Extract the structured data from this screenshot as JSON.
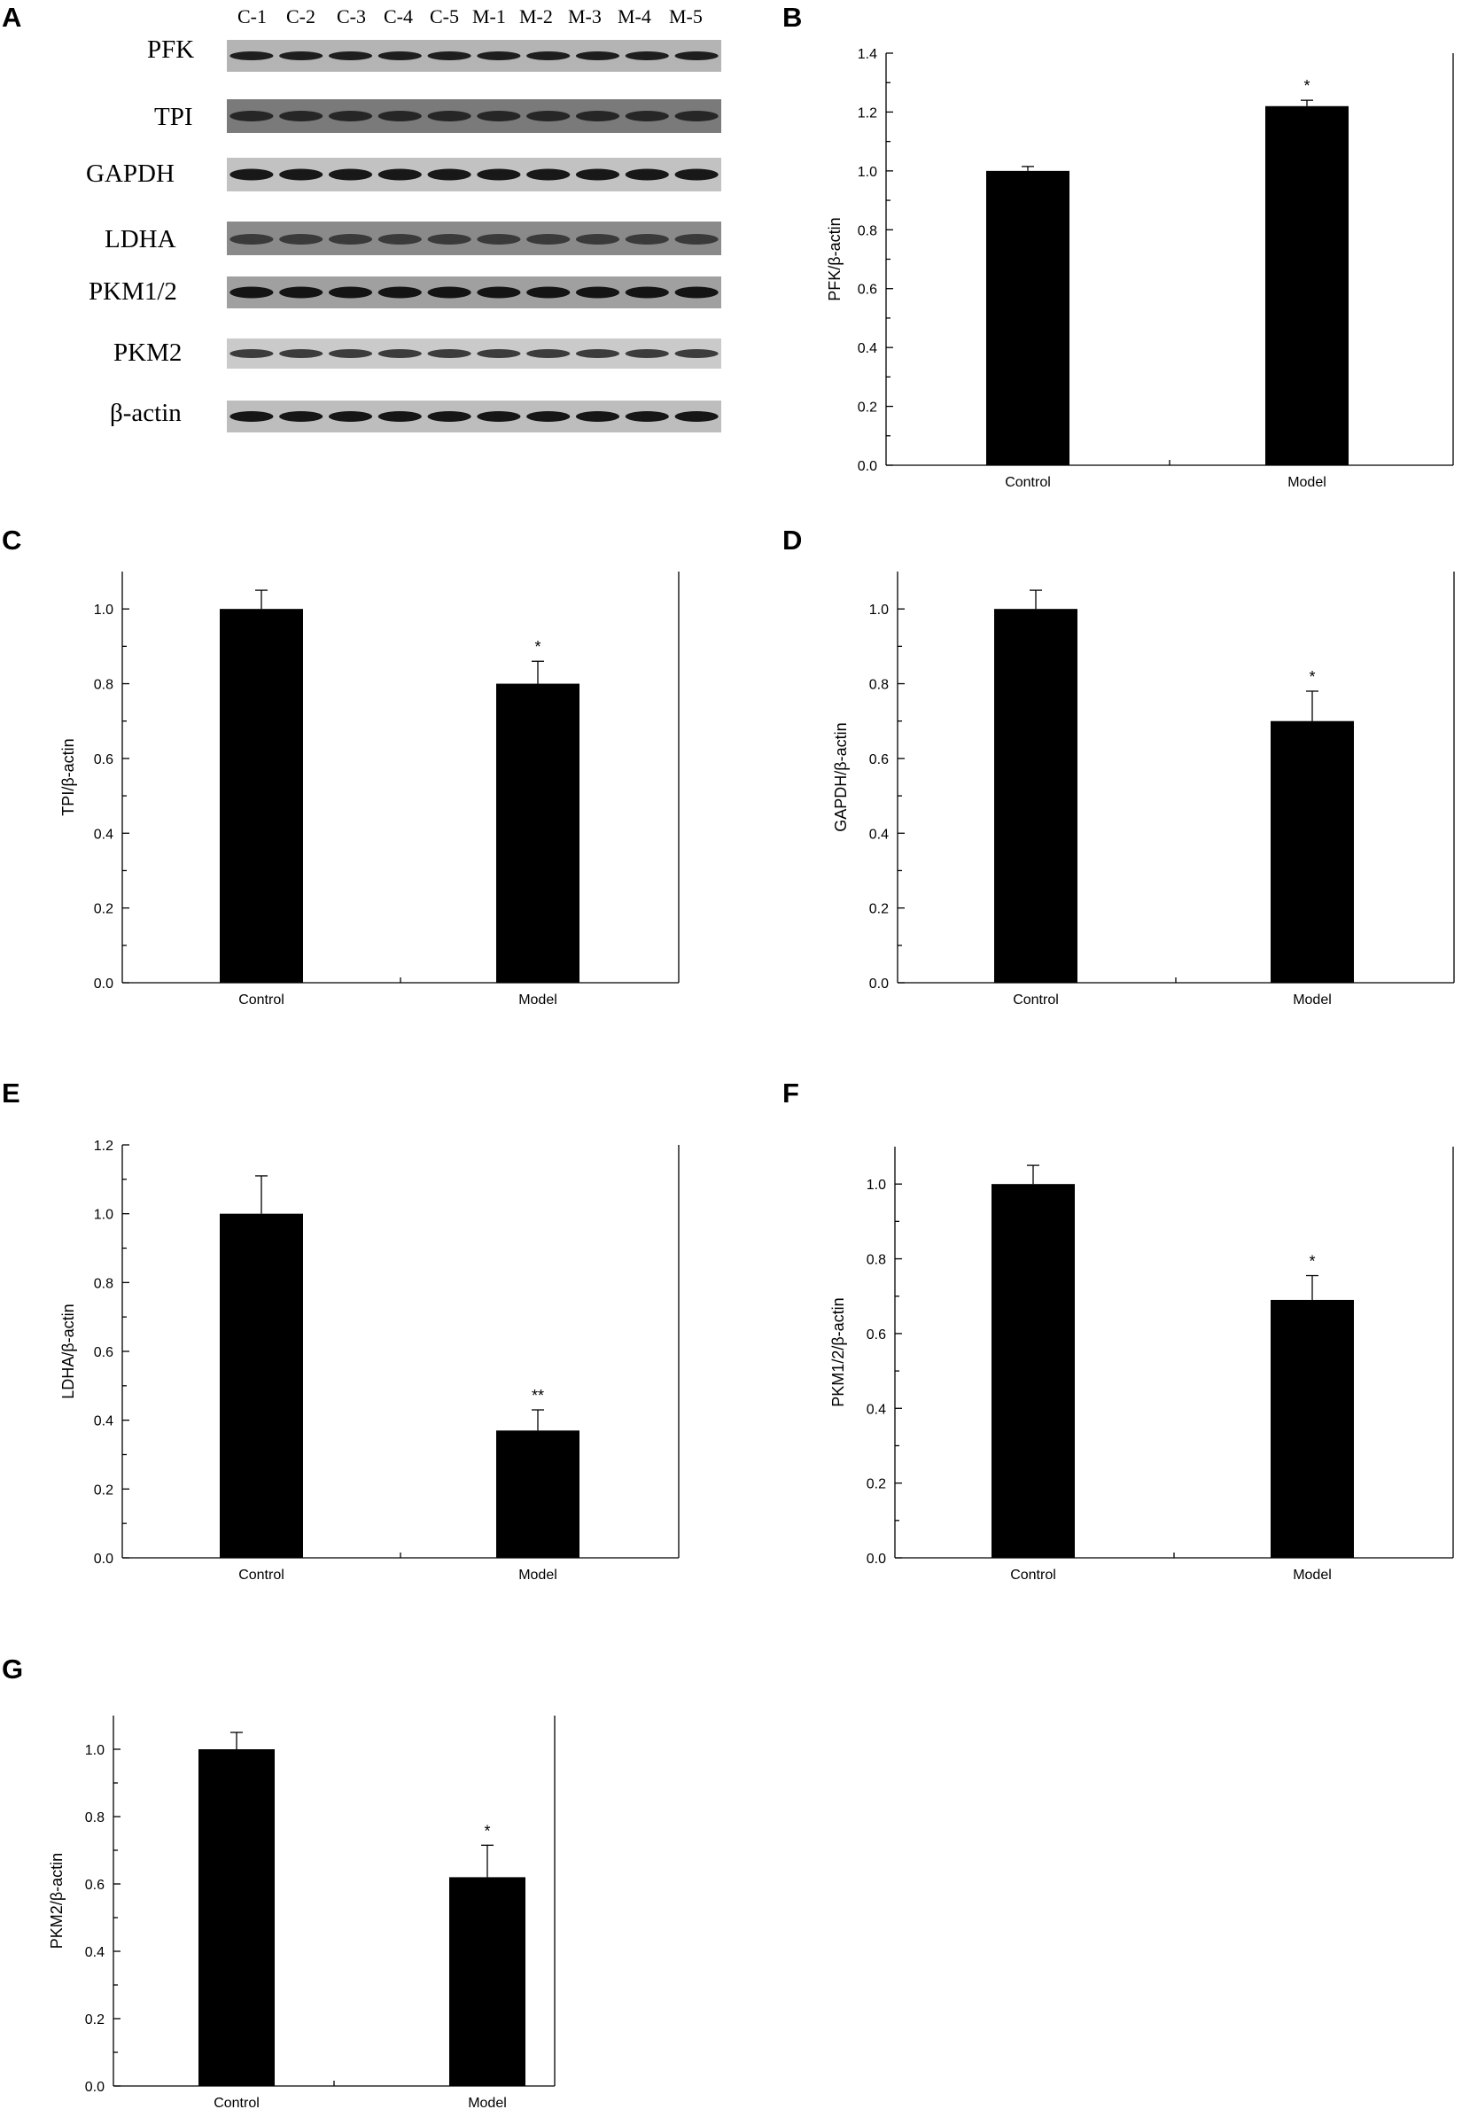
{
  "panels": {
    "A": "A",
    "B": "B",
    "C": "C",
    "D": "D",
    "E": "E",
    "F": "F",
    "G": "G"
  },
  "blot": {
    "lanes": [
      "C-1",
      "C-2",
      "C-3",
      "C-4",
      "C-5",
      "M-1",
      "M-2",
      "M-3",
      "M-4",
      "M-5"
    ],
    "rows": [
      "PFK",
      "TPI",
      "GAPDH",
      "LDHA",
      "PKM1/2",
      "PKM2",
      "β-actin"
    ]
  },
  "chart_data": [
    {
      "panel": "B",
      "type": "bar",
      "categories": [
        "Control",
        "Model"
      ],
      "values": [
        1.0,
        1.22
      ],
      "errors": [
        0.015,
        0.02
      ],
      "significance": [
        "",
        "*"
      ],
      "xlabel": "",
      "ylabel": "PFK/β-actin",
      "ylim": [
        0,
        1.4
      ],
      "yticks": [
        "0.0",
        "0.2",
        "0.4",
        "0.6",
        "0.8",
        "1.0",
        "1.2",
        "1.4"
      ]
    },
    {
      "panel": "C",
      "type": "bar",
      "categories": [
        "Control",
        "Model"
      ],
      "values": [
        1.0,
        0.8
      ],
      "errors": [
        0.05,
        0.06
      ],
      "significance": [
        "",
        "*"
      ],
      "xlabel": "",
      "ylabel": "TPI/β-actin",
      "ylim": [
        0,
        1.1
      ],
      "yticks": [
        "0.0",
        "0.2",
        "0.4",
        "0.6",
        "0.8",
        "1.0"
      ]
    },
    {
      "panel": "D",
      "type": "bar",
      "categories": [
        "Control",
        "Model"
      ],
      "values": [
        1.0,
        0.7
      ],
      "errors": [
        0.05,
        0.08
      ],
      "significance": [
        "",
        "*"
      ],
      "xlabel": "",
      "ylabel": "GAPDH/β-actin",
      "ylim": [
        0,
        1.1
      ],
      "yticks": [
        "0.0",
        "0.2",
        "0.4",
        "0.6",
        "0.8",
        "1.0"
      ]
    },
    {
      "panel": "E",
      "type": "bar",
      "categories": [
        "Control",
        "Model"
      ],
      "values": [
        1.0,
        0.37
      ],
      "errors": [
        0.11,
        0.06
      ],
      "significance": [
        "",
        "**"
      ],
      "xlabel": "",
      "ylabel": "LDHA/β-actin",
      "ylim": [
        0,
        1.2
      ],
      "yticks": [
        "0.0",
        "0.2",
        "0.4",
        "0.6",
        "0.8",
        "1.0",
        "1.2"
      ]
    },
    {
      "panel": "F",
      "type": "bar",
      "categories": [
        "Control",
        "Model"
      ],
      "values": [
        1.0,
        0.69
      ],
      "errors": [
        0.05,
        0.065
      ],
      "significance": [
        "",
        "*"
      ],
      "xlabel": "",
      "ylabel": "PKM1/2/β-actin",
      "ylim": [
        0,
        1.1
      ],
      "yticks": [
        "0.0",
        "0.2",
        "0.4",
        "0.6",
        "0.8",
        "1.0"
      ]
    },
    {
      "panel": "G",
      "type": "bar",
      "categories": [
        "Control",
        "Model"
      ],
      "values": [
        1.0,
        0.62
      ],
      "errors": [
        0.05,
        0.095
      ],
      "significance": [
        "",
        "*"
      ],
      "xlabel": "",
      "ylabel": "PKM2/β-actin",
      "ylim": [
        0,
        1.1
      ],
      "yticks": [
        "0.0",
        "0.2",
        "0.4",
        "0.6",
        "0.8",
        "1.0"
      ]
    }
  ]
}
